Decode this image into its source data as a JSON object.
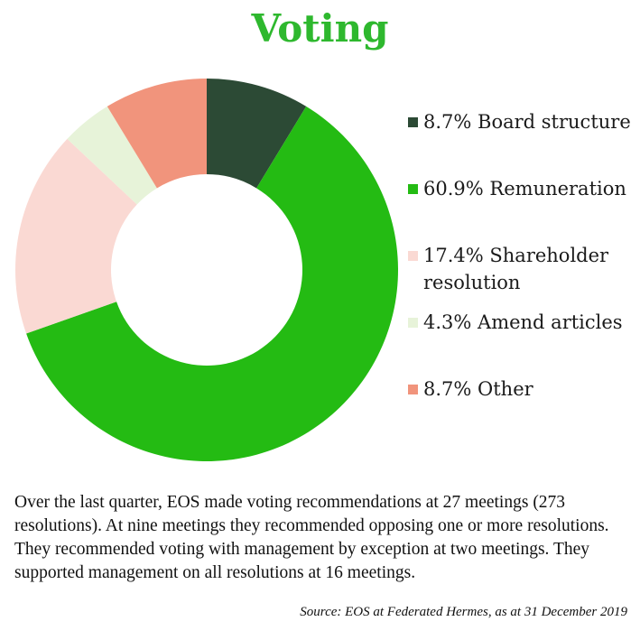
{
  "chart_data": {
    "type": "pie",
    "variant": "donut",
    "title": "Voting",
    "slices": [
      {
        "label": "Board structure",
        "value": 8.7,
        "display": "8.7% Board structure",
        "color": "#2c4a35"
      },
      {
        "label": "Remuneration",
        "value": 60.9,
        "display": "60.9% Remuneration",
        "color": "#24bb13"
      },
      {
        "label": "Shareholder resolution",
        "value": 17.4,
        "display": "17.4% Shareholder resolution",
        "color": "#fad9d3"
      },
      {
        "label": "Amend articles",
        "value": 4.3,
        "display": "4.3% Amend articles",
        "color": "#e7f3d9"
      },
      {
        "label": "Other",
        "value": 8.7,
        "display": "8.7% Other",
        "color": "#f1947c"
      }
    ],
    "legend_position": "right"
  },
  "description": "Over the last quarter, EOS made voting recommendations at 27 meetings (273 resolutions). At nine meetings they recommended opposing one or more resolutions. They recommended voting with management by exception at two meetings. They supported management on all resolutions at 16 meetings.",
  "source": "Source: EOS at Federated Hermes, as at 31 December 2019"
}
